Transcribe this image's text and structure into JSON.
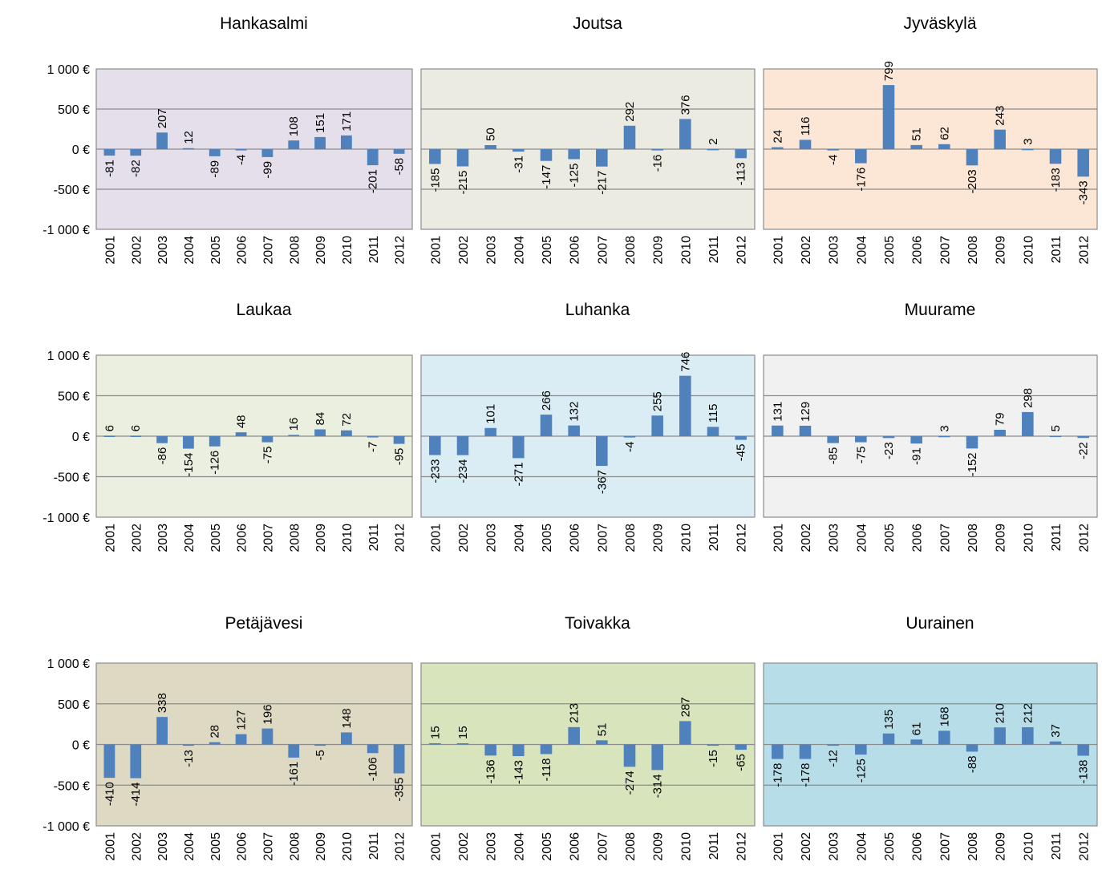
{
  "colors": {
    "bar": "#4f81bd",
    "grid": "#8c8c8c",
    "border": "#8c8c8c"
  },
  "y_axis": {
    "ticks": [
      1000,
      500,
      0,
      -500,
      -1000
    ],
    "tick_labels": [
      "1 000 €",
      "500 €",
      "0 €",
      "-500 €",
      "-1 000 €"
    ],
    "ylim": [
      -1000,
      1000
    ]
  },
  "chart_data": [
    {
      "type": "bar",
      "title": "Hankasalmi",
      "bg": "#e4dfeb",
      "categories": [
        "2001",
        "2002",
        "2003",
        "2004",
        "2005",
        "2006",
        "2007",
        "2008",
        "2009",
        "2010",
        "2011",
        "2012"
      ],
      "values": [
        -81,
        -82,
        207,
        12,
        -89,
        -4,
        -99,
        108,
        151,
        171,
        -201,
        -58
      ],
      "xlabel": "",
      "ylabel": "",
      "ylim": [
        -1000,
        1000
      ],
      "grid": true,
      "legend": "none"
    },
    {
      "type": "bar",
      "title": "Joutsa",
      "bg": "#ecebe1",
      "categories": [
        "2001",
        "2002",
        "2003",
        "2004",
        "2005",
        "2006",
        "2007",
        "2008",
        "2009",
        "2010",
        "2011",
        "2012"
      ],
      "values": [
        -185,
        -215,
        50,
        -31,
        -147,
        -125,
        -217,
        292,
        -16,
        376,
        2,
        -113
      ],
      "xlabel": "",
      "ylabel": "",
      "ylim": [
        -1000,
        1000
      ],
      "grid": true,
      "legend": "none"
    },
    {
      "type": "bar",
      "title": "Jyväskylä",
      "bg": "#fce6d5",
      "categories": [
        "2001",
        "2002",
        "2003",
        "2004",
        "2005",
        "2006",
        "2007",
        "2008",
        "2009",
        "2010",
        "2011",
        "2012"
      ],
      "values": [
        24,
        116,
        -4,
        -176,
        799,
        51,
        62,
        -203,
        243,
        3,
        -183,
        -343
      ],
      "xlabel": "",
      "ylabel": "",
      "ylim": [
        -1000,
        1000
      ],
      "grid": true,
      "legend": "none"
    },
    {
      "type": "bar",
      "title": "Laukaa",
      "bg": "#ebefdf",
      "categories": [
        "2001",
        "2002",
        "2003",
        "2004",
        "2005",
        "2006",
        "2007",
        "2008",
        "2009",
        "2010",
        "2011",
        "2012"
      ],
      "values": [
        6,
        6,
        -86,
        -154,
        -126,
        48,
        -75,
        16,
        84,
        72,
        -7,
        -95
      ],
      "xlabel": "",
      "ylabel": "",
      "ylim": [
        -1000,
        1000
      ],
      "grid": true,
      "legend": "none"
    },
    {
      "type": "bar",
      "title": "Luhanka",
      "bg": "#dbedf4",
      "categories": [
        "2001",
        "2002",
        "2003",
        "2004",
        "2005",
        "2006",
        "2007",
        "2008",
        "2009",
        "2010",
        "2011",
        "2012"
      ],
      "values": [
        -233,
        -234,
        101,
        -271,
        266,
        132,
        -367,
        -4,
        255,
        746,
        115,
        -45
      ],
      "xlabel": "",
      "ylabel": "",
      "ylim": [
        -1000,
        1000
      ],
      "grid": true,
      "legend": "none"
    },
    {
      "type": "bar",
      "title": "Muurame",
      "bg": "#f1f1f1",
      "categories": [
        "2001",
        "2002",
        "2003",
        "2004",
        "2005",
        "2006",
        "2007",
        "2008",
        "2009",
        "2010",
        "2011",
        "2012"
      ],
      "values": [
        131,
        129,
        -85,
        -75,
        -23,
        -91,
        3,
        -152,
        79,
        298,
        5,
        -22
      ],
      "xlabel": "",
      "ylabel": "",
      "ylim": [
        -1000,
        1000
      ],
      "grid": true,
      "legend": "none"
    },
    {
      "type": "bar",
      "title": "Petäjävesi",
      "bg": "#ddd9c3",
      "categories": [
        "2001",
        "2002",
        "2003",
        "2004",
        "2005",
        "2006",
        "2007",
        "2008",
        "2009",
        "2010",
        "2011",
        "2012"
      ],
      "values": [
        -410,
        -414,
        338,
        -13,
        28,
        127,
        196,
        -161,
        -5,
        148,
        -106,
        -355
      ],
      "xlabel": "",
      "ylabel": "",
      "ylim": [
        -1000,
        1000
      ],
      "grid": true,
      "legend": "none"
    },
    {
      "type": "bar",
      "title": "Toivakka",
      "bg": "#d7e4bc",
      "categories": [
        "2001",
        "2002",
        "2003",
        "2004",
        "2005",
        "2006",
        "2007",
        "2008",
        "2009",
        "2010",
        "2011",
        "2012"
      ],
      "values": [
        15,
        15,
        -136,
        -143,
        -118,
        213,
        51,
        -274,
        -314,
        287,
        -15,
        -65
      ],
      "xlabel": "",
      "ylabel": "",
      "ylim": [
        -1000,
        1000
      ],
      "grid": true,
      "legend": "none"
    },
    {
      "type": "bar",
      "title": "Uurainen",
      "bg": "#b7dee8",
      "categories": [
        "2001",
        "2002",
        "2003",
        "2004",
        "2005",
        "2006",
        "2007",
        "2008",
        "2009",
        "2010",
        "2011",
        "2012"
      ],
      "values": [
        -178,
        -178,
        -12,
        -125,
        135,
        61,
        168,
        -88,
        210,
        212,
        37,
        -138
      ],
      "xlabel": "",
      "ylabel": "",
      "ylim": [
        -1000,
        1000
      ],
      "grid": true,
      "legend": "none"
    }
  ]
}
